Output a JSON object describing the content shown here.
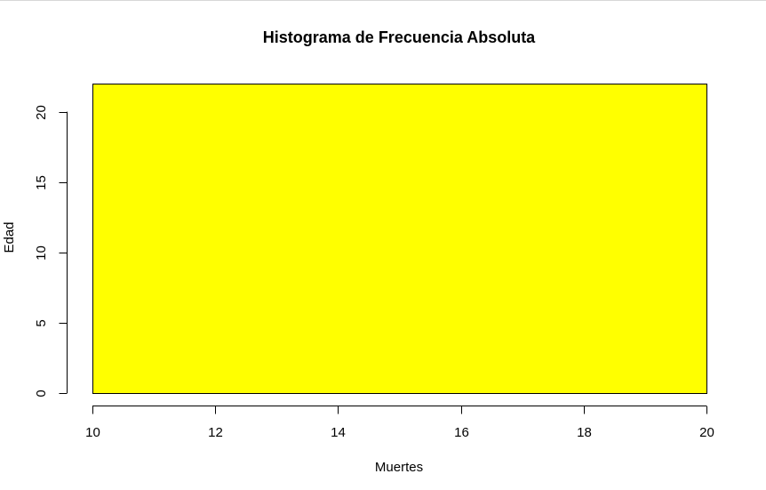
{
  "chart_data": {
    "type": "bar",
    "title": "Histograma de Frecuencia Absoluta",
    "xlabel": "Muertes",
    "ylabel": "Edad",
    "bins": [
      {
        "x0": 10,
        "x1": 20,
        "value": 22
      }
    ],
    "xlim": [
      10,
      20
    ],
    "ylim": [
      0,
      22
    ],
    "xticks": [
      "10",
      "12",
      "14",
      "16",
      "18",
      "20"
    ],
    "yticks": [
      "0",
      "5",
      "10",
      "15",
      "20"
    ],
    "bar_color": "#ffff00",
    "bar_border_color": "#000000",
    "grid": false,
    "legend": "none"
  }
}
